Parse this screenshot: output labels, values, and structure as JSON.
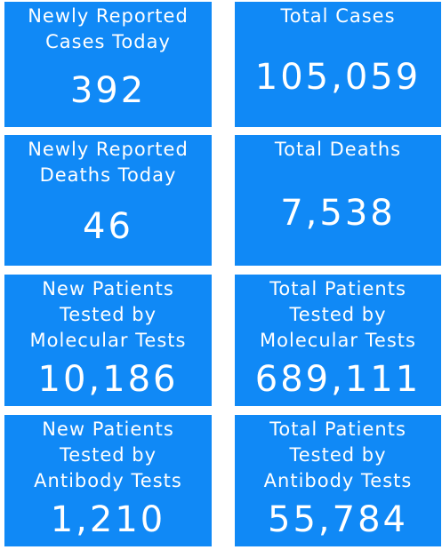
{
  "tiles": [
    {
      "label_lines": [
        "Newly Reported",
        "Cases Today"
      ],
      "value": "392"
    },
    {
      "label_lines": [
        "Total Cases"
      ],
      "value": "105,059"
    },
    {
      "label_lines": [
        "Newly Reported",
        "Deaths Today"
      ],
      "value": "46"
    },
    {
      "label_lines": [
        "Total Deaths"
      ],
      "value": "7,538"
    },
    {
      "label_lines": [
        "New Patients",
        "Tested by",
        "Molecular Tests"
      ],
      "value": "10,186"
    },
    {
      "label_lines": [
        "Total Patients",
        "Tested by",
        "Molecular Tests"
      ],
      "value": "689,111"
    },
    {
      "label_lines": [
        "New Patients",
        "Tested by",
        "Antibody Tests"
      ],
      "value": "1,210"
    },
    {
      "label_lines": [
        "Total Patients",
        "Tested by",
        "Antibody Tests"
      ],
      "value": "55,784"
    }
  ]
}
